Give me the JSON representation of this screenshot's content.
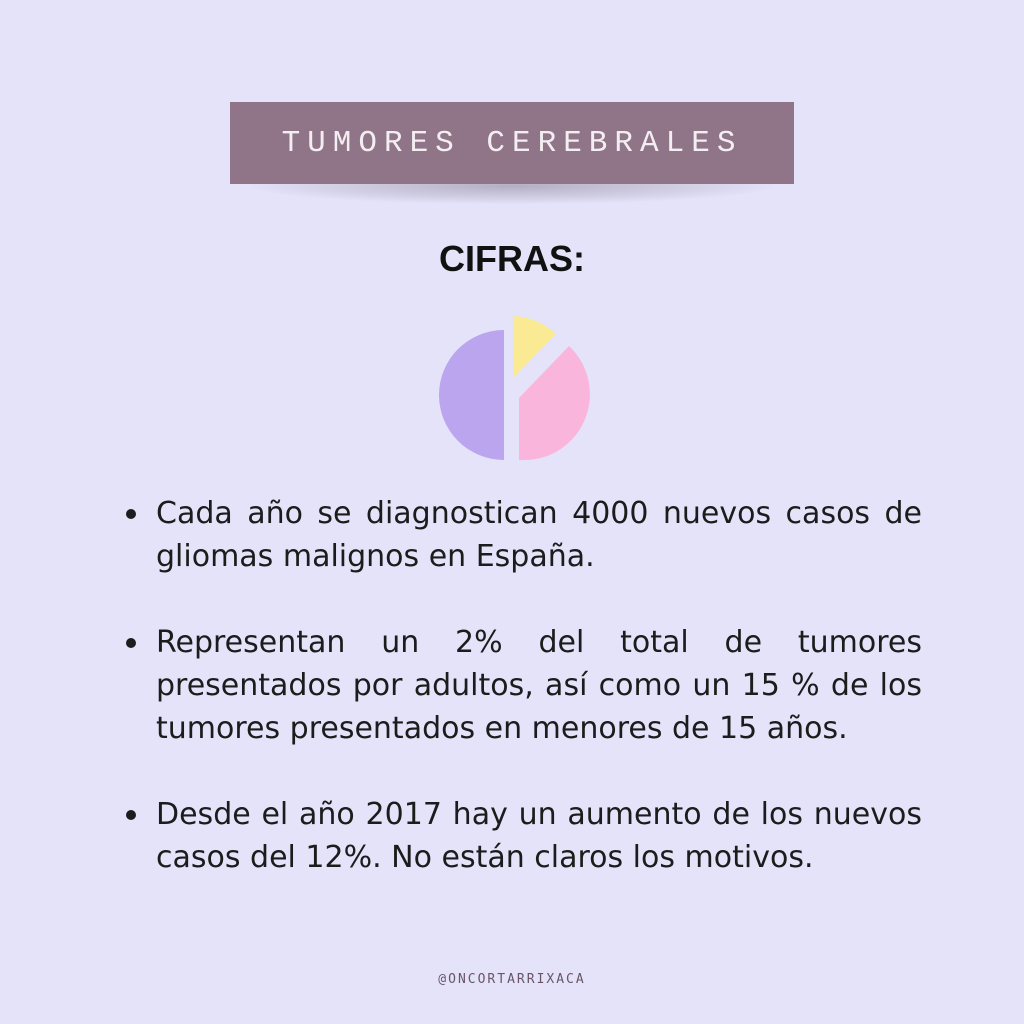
{
  "banner": {
    "title": "TUMORES CEREBRALES"
  },
  "section": {
    "title": "CIFRAS:"
  },
  "pie_icon": {
    "colors": {
      "left": "#bba5ef",
      "right": "#f9b5db",
      "wedge": "#f9ea93"
    }
  },
  "bullets": [
    {
      "text": "Cada año se diagnostican 4000 nuevos casos de gliomas malignos en España."
    },
    {
      "text": "Representan un 2% del total de tumores presentados por adultos, así como un 15 % de los tumores presentados en menores de 15 años."
    },
    {
      "text": "Desde el año 2017 hay un aumento de los nuevos casos del 12%. No están claros los motivos."
    }
  ],
  "footer": {
    "handle": "@ONCORTARRIXACA"
  }
}
